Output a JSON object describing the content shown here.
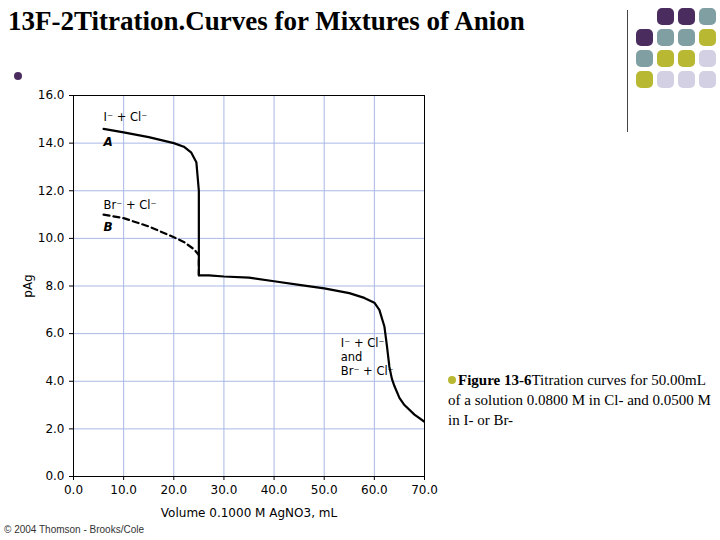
{
  "chart_data": {
    "type": "line",
    "title": "13F-2Titration.Curves for Mixtures of Anion",
    "x_label": "Volume 0.1000 M AgNO3, mL",
    "y_label": "pAg",
    "xlim": [
      0,
      70
    ],
    "ylim": [
      0,
      16
    ],
    "xticks": [
      {
        "value": 0,
        "label": "0.0"
      },
      {
        "value": 10,
        "label": "10.0"
      },
      {
        "value": 20,
        "label": "20.0"
      },
      {
        "value": 30,
        "label": "30.0"
      },
      {
        "value": 40,
        "label": "40.0"
      },
      {
        "value": 50,
        "label": "50.0"
      },
      {
        "value": 60,
        "label": "60.0"
      },
      {
        "value": 70,
        "label": "70.0"
      }
    ],
    "yticks": [
      {
        "value": 0,
        "label": "0.0"
      },
      {
        "value": 2,
        "label": "2.0"
      },
      {
        "value": 4,
        "label": "4.0"
      },
      {
        "value": 6,
        "label": "6.0"
      },
      {
        "value": 8,
        "label": "8.0"
      },
      {
        "value": 10,
        "label": "10.0"
      },
      {
        "value": 12,
        "label": "12.0"
      },
      {
        "value": 14,
        "label": "14.0"
      },
      {
        "value": 16,
        "label": "16.0"
      }
    ],
    "grid": true,
    "series": [
      {
        "name": "A",
        "color": "#000000",
        "line_style": "solid",
        "x": [
          6,
          10,
          15,
          20,
          22,
          23.5,
          24.5,
          25,
          25,
          27,
          30,
          35,
          40,
          45,
          50,
          55,
          58,
          60,
          61,
          62,
          62.5,
          63,
          63.5,
          64,
          65,
          66,
          68,
          70
        ],
        "values": [
          14.6,
          14.45,
          14.25,
          14.0,
          13.85,
          13.6,
          13.2,
          12.0,
          8.45,
          8.45,
          8.4,
          8.35,
          8.2,
          8.05,
          7.9,
          7.7,
          7.5,
          7.3,
          7.0,
          6.3,
          5.5,
          4.6,
          4.1,
          3.8,
          3.3,
          3.0,
          2.6,
          2.3
        ]
      },
      {
        "name": "B",
        "color": "#000000",
        "line_style": "dashed",
        "x": [
          6,
          10,
          15,
          20,
          22,
          24,
          25,
          25
        ],
        "values": [
          11.0,
          10.85,
          10.5,
          10.05,
          9.85,
          9.55,
          9.3,
          8.45
        ]
      }
    ],
    "annotations": [
      {
        "text": "I⁻ + Cl⁻",
        "x": 6,
        "y": 15.1
      },
      {
        "text": "Br⁻ + Cl⁻",
        "x": 6,
        "y": 11.4
      },
      {
        "text": "I⁻ + Cl⁻",
        "x": 53.3,
        "y": 5.6
      },
      {
        "text": "and",
        "x": 53.3,
        "y": 5.0
      },
      {
        "text": "Br⁻ + Cl⁻",
        "x": 53.3,
        "y": 4.4
      }
    ],
    "caption": {
      "label": "Figure 13-6",
      "text": "Titration curves for 50.00mL of a solution 0.0800 M in Cl- and 0.0500 M in I- or Br-"
    },
    "credit": "© 2004 Thomson - Brooks/Cole"
  }
}
